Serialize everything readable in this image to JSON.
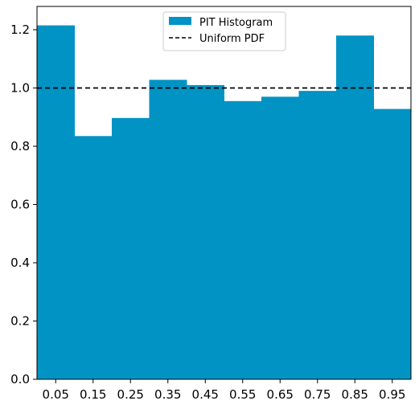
{
  "chart_data": {
    "type": "bar",
    "categories": [
      "0.05",
      "0.15",
      "0.25",
      "0.35",
      "0.45",
      "0.55",
      "0.65",
      "0.75",
      "0.85",
      "0.95"
    ],
    "series": [
      {
        "name": "PIT Histogram",
        "color": "#0093c4",
        "values": [
          1.215,
          0.835,
          0.897,
          1.028,
          1.01,
          0.955,
          0.97,
          0.99,
          1.18,
          0.928
        ]
      }
    ],
    "reference_line": {
      "name": "Uniform PDF",
      "y": 1.0,
      "color": "#000000",
      "style": "dashed"
    },
    "xlim": [
      0,
      1
    ],
    "ylim": [
      0,
      1.28
    ],
    "yticks": [
      "0.0",
      "0.2",
      "0.4",
      "0.6",
      "0.8",
      "1.0",
      "1.2"
    ],
    "legend_position": "top-center",
    "grid": false
  }
}
